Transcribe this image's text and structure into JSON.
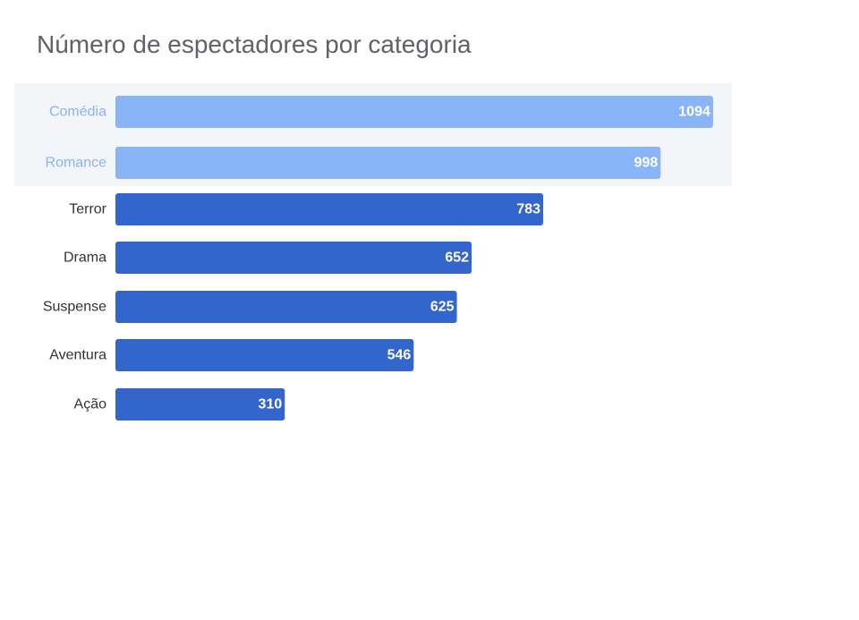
{
  "chart_data": {
    "type": "bar",
    "orientation": "horizontal",
    "title": "Número de espectadores por categoria",
    "xlabel": "",
    "ylabel": "",
    "categories": [
      "Comédia",
      "Romance",
      "Terror",
      "Drama",
      "Suspense",
      "Aventura",
      "Ação"
    ],
    "values": [
      1094,
      998,
      783,
      652,
      625,
      546,
      310
    ],
    "highlighted": [
      "Comédia",
      "Romance"
    ],
    "grid": false,
    "legend": "none",
    "colors": {
      "bar": "#3366cc",
      "bar_highlight": "#8ab4f8",
      "label": "#333333",
      "label_highlight": "#8ab4f8",
      "highlight_band": "#f3f5f9",
      "title": "#5f6368"
    }
  }
}
